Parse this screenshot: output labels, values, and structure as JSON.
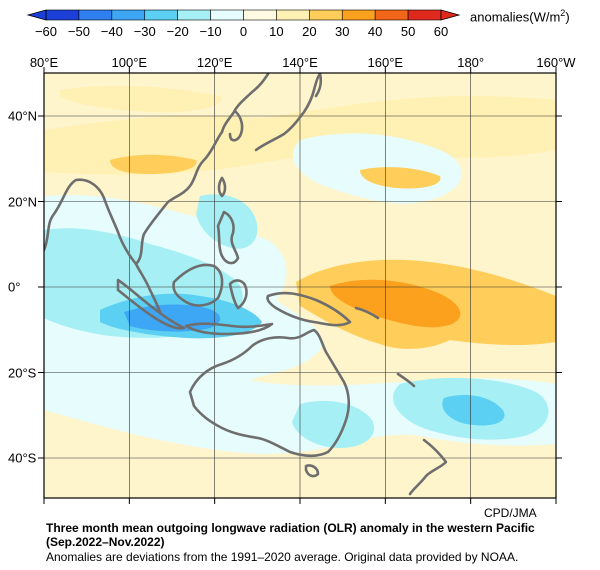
{
  "colorbar": {
    "ticks": [
      "−60",
      "−50",
      "−40",
      "−30",
      "−20",
      "−10",
      "0",
      "10",
      "20",
      "30",
      "40",
      "50",
      "60"
    ],
    "colors": [
      "#1c3fd8",
      "#2f7ff0",
      "#3ea7f5",
      "#5cd0f2",
      "#a6f0f5",
      "#e6fcfd",
      "#fffbe2",
      "#fff0b3",
      "#ffce5a",
      "#fba11d",
      "#f2661a",
      "#e0291d"
    ],
    "units_label": "anomalies(W/m",
    "units_sup": "2",
    "units_close": ")"
  },
  "axes": {
    "lon_labels": [
      "80°E",
      "100°E",
      "120°E",
      "140°E",
      "160°E",
      "180°",
      "160°W"
    ],
    "lat_labels": [
      "40°N",
      "20°N",
      "0°",
      "20°S",
      "40°S"
    ]
  },
  "credit": "CPD/JMA",
  "title": "Three month mean outgoing longwave radiation (OLR) anomaly in the western Pacific",
  "subtitle": "(Sep.2022–Nov.2022)",
  "note": "Anomalies are deviations from the 1991–2020 average. Original data provided by NOAA.",
  "colors": {
    "land_outline": "#6e6e6e",
    "grid": "#333333",
    "ocean_base": "#fff5cc"
  }
}
